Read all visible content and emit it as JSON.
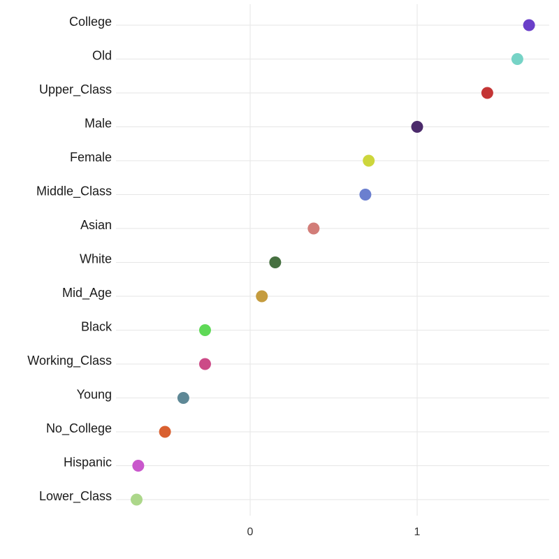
{
  "chart_data": {
    "type": "scatter",
    "title": "",
    "xlabel": "",
    "ylabel": "",
    "xlim": [
      -0.8,
      1.8
    ],
    "xticks": [
      0,
      1
    ],
    "grid": true,
    "legend": "none",
    "points": [
      {
        "category": "College",
        "value": 1.67,
        "color": "#6a3fc9"
      },
      {
        "category": "Old",
        "value": 1.6,
        "color": "#76d3c6"
      },
      {
        "category": "Upper_Class",
        "value": 1.42,
        "color": "#c43535"
      },
      {
        "category": "Male",
        "value": 1.0,
        "color": "#4b2a6b"
      },
      {
        "category": "Female",
        "value": 0.71,
        "color": "#cdd63c"
      },
      {
        "category": "Middle_Class",
        "value": 0.69,
        "color": "#6b7fcf"
      },
      {
        "category": "Asian",
        "value": 0.38,
        "color": "#d27d78"
      },
      {
        "category": "White",
        "value": 0.15,
        "color": "#467040"
      },
      {
        "category": "Mid_Age",
        "value": 0.07,
        "color": "#c59c3f"
      },
      {
        "category": "Black",
        "value": -0.27,
        "color": "#5fd957"
      },
      {
        "category": "Working_Class",
        "value": -0.27,
        "color": "#cc4a87"
      },
      {
        "category": "Young",
        "value": -0.4,
        "color": "#5e8896"
      },
      {
        "category": "No_College",
        "value": -0.51,
        "color": "#d96030"
      },
      {
        "category": "Hispanic",
        "value": -0.67,
        "color": "#c957cc"
      },
      {
        "category": "Lower_Class",
        "value": -0.68,
        "color": "#acd78a"
      }
    ]
  }
}
